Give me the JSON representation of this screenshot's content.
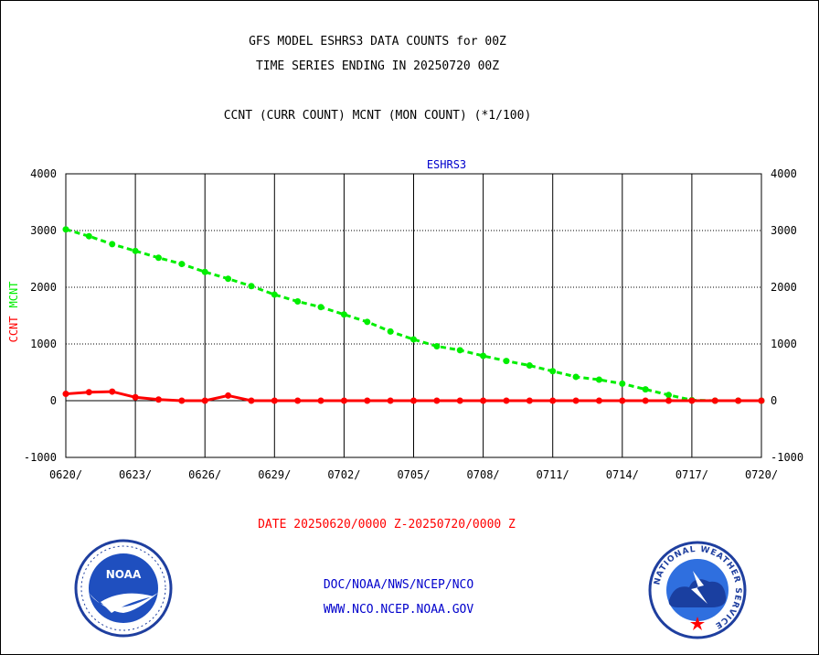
{
  "header": {
    "line1": "GFS MODEL ESHRS3 DATA COUNTS for 00Z",
    "line2": "TIME SERIES ENDING IN 20250720 00Z",
    "line3": "CCNT (CURR COUNT) MCNT (MON COUNT) (*1/100)"
  },
  "footer": {
    "date_range": "DATE 20250620/0000 Z-20250720/0000 Z",
    "org_path": "DOC/NOAA/NWS/NCEP/NCO",
    "website": "WWW.NCO.NCEP.NOAA.GOV"
  },
  "logos": {
    "left": "NOAA",
    "right_ring": "NATIONAL WEATHER SERVICE"
  },
  "chart_data": {
    "type": "line",
    "title": "ESHRS3",
    "ylabel_parts": [
      "CCNT",
      "MCNT"
    ],
    "ylim": [
      -1000,
      4000
    ],
    "yticks": [
      -1000,
      0,
      1000,
      2000,
      3000,
      4000
    ],
    "ytick_labels": [
      "-1000",
      "0",
      "1000",
      "2000",
      "3000",
      "4000"
    ],
    "xtick_labels": [
      "0620/",
      "0623/",
      "0626/",
      "0629/",
      "0702/",
      "0705/",
      "0708/",
      "0711/",
      "0714/",
      "0717/",
      "0720/"
    ],
    "x_days": 30,
    "grid": true,
    "series": [
      {
        "name": "MCNT",
        "color": "#00ee00",
        "style": "dashed",
        "values": [
          3020,
          2900,
          2760,
          2640,
          2520,
          2410,
          2270,
          2150,
          2020,
          1870,
          1750,
          1650,
          1520,
          1390,
          1220,
          1080,
          960,
          890,
          790,
          700,
          620,
          520,
          420,
          370,
          300,
          200,
          100,
          10,
          0,
          0,
          0
        ]
      },
      {
        "name": "CCNT",
        "color": "#ff0000",
        "style": "solid",
        "values": [
          120,
          150,
          160,
          60,
          20,
          0,
          0,
          90,
          0,
          0,
          0,
          0,
          0,
          0,
          0,
          0,
          0,
          0,
          0,
          0,
          0,
          0,
          0,
          0,
          0,
          0,
          0,
          0,
          0,
          0,
          0
        ]
      }
    ]
  }
}
